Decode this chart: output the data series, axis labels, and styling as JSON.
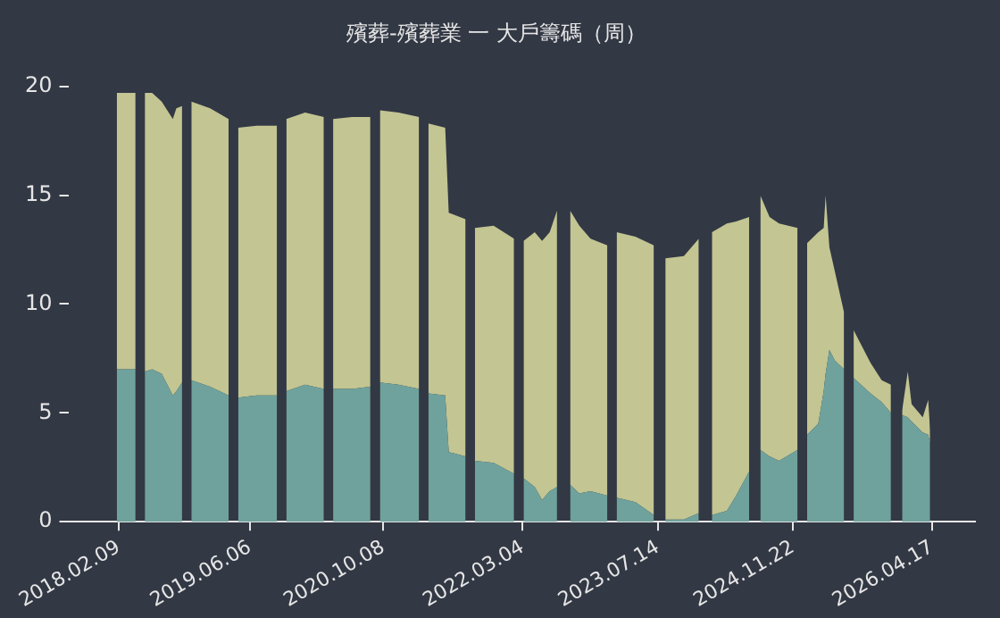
{
  "chart_data": {
    "type": "area",
    "title": "殯葬-殯葬業 一 大戶籌碼（周）",
    "stacked": true,
    "legend": false,
    "grid": false,
    "x": [
      "2018-02-02",
      "2018-04-12",
      "2018-05-02",
      "2018-05-16",
      "2018-06-12",
      "2018-07-17",
      "2018-08-27",
      "2018-09-09",
      "2018-09-30",
      "2018-10-21",
      "2018-11-03",
      "2019-01-11",
      "2019-03-20",
      "2019-04-03",
      "2019-04-24",
      "2019-07-01",
      "2019-09-14",
      "2019-10-04",
      "2019-10-18",
      "2019-12-26",
      "2020-03-04",
      "2020-03-25",
      "2020-04-07",
      "2020-06-15",
      "2020-08-22",
      "2020-09-12",
      "2020-09-26",
      "2020-12-03",
      "2021-02-17",
      "2021-03-02",
      "2021-03-23",
      "2021-05-24",
      "2021-06-06",
      "2021-08-07",
      "2021-08-28",
      "2021-09-10",
      "2021-11-18",
      "2022-02-01",
      "2022-02-15",
      "2022-03-08",
      "2022-04-18",
      "2022-05-15",
      "2022-06-12",
      "2022-07-09",
      "2022-08-05",
      "2022-08-26",
      "2022-09-29",
      "2022-11-09",
      "2023-01-10",
      "2023-01-24",
      "2023-02-13",
      "2023-04-23",
      "2023-06-30",
      "2023-07-21",
      "2023-08-11",
      "2023-10-18",
      "2023-12-12",
      "2024-01-08",
      "2024-01-29",
      "2024-03-24",
      "2024-04-27",
      "2024-06-14",
      "2024-07-05",
      "2024-07-25",
      "2024-08-28",
      "2024-10-02",
      "2024-12-09",
      "2024-12-23",
      "2025-01-13",
      "2025-02-23",
      "2025-03-15",
      "2025-03-22",
      "2025-04-05",
      "2025-04-25",
      "2025-05-29",
      "2025-06-12",
      "2025-07-03",
      "2025-09-03",
      "2025-10-14",
      "2025-11-17",
      "2025-12-08",
      "2025-12-28",
      "2026-01-18",
      "2026-02-01",
      "2026-03-14",
      "2026-04-03",
      "2026-04-10"
    ],
    "series": [
      {
        "color": "#6fa29c",
        "values": [
          7.0,
          7.0,
          null,
          6.9,
          7.0,
          6.8,
          5.8,
          6.0,
          6.4,
          null,
          6.5,
          6.2,
          5.8,
          null,
          5.7,
          5.8,
          5.8,
          null,
          6.0,
          6.3,
          6.1,
          null,
          6.1,
          6.1,
          6.2,
          null,
          6.4,
          6.3,
          6.1,
          null,
          5.9,
          5.8,
          3.2,
          3.0,
          null,
          2.8,
          2.7,
          2.2,
          null,
          2.0,
          1.6,
          1.0,
          1.4,
          1.6,
          null,
          1.7,
          1.3,
          1.4,
          1.2,
          null,
          1.1,
          0.9,
          0.3,
          null,
          0.1,
          0.1,
          0.4,
          null,
          0.3,
          0.5,
          1.2,
          2.3,
          null,
          3.3,
          3.0,
          2.8,
          3.3,
          null,
          4.0,
          4.5,
          6.0,
          6.8,
          7.9,
          7.4,
          7.0,
          null,
          6.6,
          5.9,
          5.5,
          5.0,
          null,
          4.9,
          4.8,
          4.6,
          4.1,
          4.0,
          3.6
        ]
      },
      {
        "color": "#c3c592",
        "values": [
          12.7,
          12.7,
          null,
          12.8,
          12.7,
          12.5,
          12.7,
          13.0,
          12.7,
          null,
          12.8,
          12.8,
          12.7,
          null,
          12.4,
          12.4,
          12.4,
          null,
          12.5,
          12.5,
          12.5,
          null,
          12.4,
          12.5,
          12.4,
          null,
          12.5,
          12.5,
          12.5,
          null,
          12.4,
          12.3,
          11.0,
          10.9,
          null,
          10.7,
          10.9,
          10.8,
          null,
          10.9,
          11.7,
          11.9,
          11.9,
          12.7,
          null,
          12.6,
          12.3,
          11.6,
          11.5,
          null,
          12.2,
          12.2,
          12.4,
          null,
          12.0,
          12.1,
          12.6,
          null,
          13.0,
          13.2,
          12.6,
          11.7,
          null,
          11.7,
          11.0,
          10.9,
          10.2,
          null,
          8.8,
          8.8,
          7.5,
          8.2,
          4.7,
          4.1,
          2.6,
          null,
          2.2,
          1.4,
          1.0,
          1.3,
          null,
          0.2,
          2.1,
          0.8,
          0.7,
          1.6,
          0.6
        ]
      }
    ],
    "xlim": [
      "2017-08-08",
      "2026-09-22"
    ],
    "xticks": [
      {
        "value": "2018-02-09",
        "label": "2018.02.09"
      },
      {
        "value": "2019-06-06",
        "label": "2019.06.06"
      },
      {
        "value": "2020-10-08",
        "label": "2020.10.08"
      },
      {
        "value": "2022-03-04",
        "label": "2022.03.04"
      },
      {
        "value": "2023-07-14",
        "label": "2023.07.14"
      },
      {
        "value": "2024-11-22",
        "label": "2024.11.22"
      },
      {
        "value": "2026-04-17",
        "label": "2026.04.17"
      }
    ],
    "ylim": [
      0,
      20
    ],
    "yticks": [
      0,
      5,
      10,
      15,
      20
    ]
  }
}
